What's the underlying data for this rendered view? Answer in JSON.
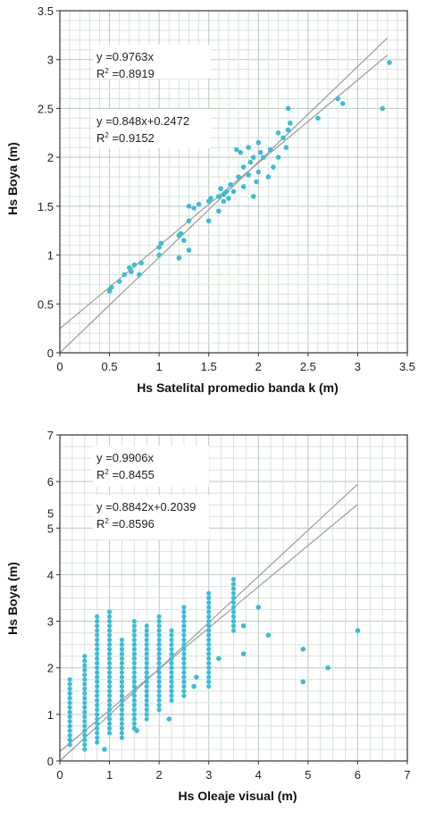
{
  "chart_data": [
    {
      "type": "scatter",
      "xlabel": "Hs Satelital promedio banda k (m)",
      "ylabel": "Hs Boya (m)",
      "xlim": [
        0,
        3.5
      ],
      "ylim": [
        0,
        3.5
      ],
      "x_ticks": [
        "0",
        "0.5",
        "1",
        "1.5",
        "2",
        "2.5",
        "3",
        "3.5"
      ],
      "y_ticks": [
        "0",
        "0.5",
        "1",
        "1.5",
        "2",
        "2.5",
        "3",
        "3.5"
      ],
      "grid": true,
      "point_color": "#3bbcd9",
      "annotations": [
        {
          "line1": "y =0.9763x",
          "line2_base": "R",
          "line2_sup": "2",
          "line2_rest": " =0.8919"
        },
        {
          "line1": "y =0.848x+0.2472",
          "line2_base": "R",
          "line2_sup": "2",
          "line2_rest": " =0.9152"
        }
      ],
      "lines": [
        {
          "slope": 0.9763,
          "intercept": 0,
          "x_end": 3.3
        },
        {
          "slope": 0.848,
          "intercept": 0.2472,
          "x_end": 3.3
        }
      ],
      "points": [
        [
          0.5,
          0.63
        ],
        [
          0.52,
          0.67
        ],
        [
          0.6,
          0.73
        ],
        [
          0.65,
          0.8
        ],
        [
          0.7,
          0.87
        ],
        [
          0.72,
          0.83
        ],
        [
          0.75,
          0.9
        ],
        [
          0.8,
          0.8
        ],
        [
          0.82,
          0.92
        ],
        [
          1.0,
          1.0
        ],
        [
          1.0,
          1.08
        ],
        [
          1.02,
          1.12
        ],
        [
          1.2,
          0.97
        ],
        [
          1.2,
          1.2
        ],
        [
          1.22,
          1.22
        ],
        [
          1.25,
          1.15
        ],
        [
          1.3,
          1.05
        ],
        [
          1.3,
          1.35
        ],
        [
          1.3,
          1.5
        ],
        [
          1.35,
          1.48
        ],
        [
          1.4,
          1.52
        ],
        [
          1.5,
          1.35
        ],
        [
          1.5,
          1.55
        ],
        [
          1.52,
          1.58
        ],
        [
          1.6,
          1.45
        ],
        [
          1.6,
          1.6
        ],
        [
          1.62,
          1.68
        ],
        [
          1.65,
          1.55
        ],
        [
          1.65,
          1.62
        ],
        [
          1.68,
          1.65
        ],
        [
          1.7,
          1.58
        ],
        [
          1.72,
          1.72
        ],
        [
          1.75,
          1.65
        ],
        [
          1.78,
          2.08
        ],
        [
          1.8,
          1.8
        ],
        [
          1.82,
          2.05
        ],
        [
          1.85,
          1.7
        ],
        [
          1.85,
          1.9
        ],
        [
          1.9,
          1.82
        ],
        [
          1.9,
          2.1
        ],
        [
          1.92,
          1.95
        ],
        [
          1.95,
          2.0
        ],
        [
          1.95,
          1.6
        ],
        [
          1.98,
          1.75
        ],
        [
          2.0,
          2.15
        ],
        [
          2.0,
          1.85
        ],
        [
          2.02,
          2.05
        ],
        [
          2.05,
          2.0
        ],
        [
          2.1,
          1.8
        ],
        [
          2.12,
          2.08
        ],
        [
          2.15,
          1.9
        ],
        [
          2.2,
          2.0
        ],
        [
          2.2,
          2.25
        ],
        [
          2.25,
          2.2
        ],
        [
          2.28,
          2.1
        ],
        [
          2.3,
          2.28
        ],
        [
          2.3,
          2.5
        ],
        [
          2.32,
          2.35
        ],
        [
          2.6,
          2.4
        ],
        [
          2.8,
          2.6
        ],
        [
          2.85,
          2.55
        ],
        [
          3.25,
          2.5
        ],
        [
          3.32,
          2.97
        ]
      ]
    },
    {
      "type": "scatter",
      "xlabel": "Hs Oleaje visual (m)",
      "ylabel": "Hs Boya (m)",
      "xlim": [
        0,
        7
      ],
      "ylim": [
        0,
        7
      ],
      "x_ticks": [
        "0",
        "1",
        "2",
        "3",
        "4",
        "5",
        "6",
        "7"
      ],
      "y_ticks": [
        "0",
        "1",
        "2",
        "3",
        "4",
        "5",
        "6",
        "7"
      ],
      "grid": true,
      "point_color": "#3bbcd9",
      "stray_mark": "5",
      "annotations": [
        {
          "line1": "y =0.9906x",
          "line2_base": "R",
          "line2_sup": "2",
          "line2_rest": " =0.8455"
        },
        {
          "line1": "y =0.8842x+0.2039",
          "line2_base": "R",
          "line2_sup": "2",
          "line2_rest": " =0.8596"
        }
      ],
      "lines": [
        {
          "slope": 0.9906,
          "intercept": 0,
          "x_end": 6
        },
        {
          "slope": 0.8842,
          "intercept": 0.2039,
          "x_end": 6
        }
      ],
      "columns": [
        {
          "x": 0.2,
          "y_min": 0.35,
          "y_max": 1.8
        },
        {
          "x": 0.5,
          "y_min": 0.25,
          "y_max": 2.3
        },
        {
          "x": 0.75,
          "y_min": 0.4,
          "y_max": 3.1
        },
        {
          "x": 1.0,
          "y_min": 0.6,
          "y_max": 3.2
        },
        {
          "x": 1.25,
          "y_min": 0.5,
          "y_max": 2.6
        },
        {
          "x": 1.5,
          "y_min": 0.7,
          "y_max": 3.0
        },
        {
          "x": 1.75,
          "y_min": 0.9,
          "y_max": 2.9
        },
        {
          "x": 2.0,
          "y_min": 1.1,
          "y_max": 3.1
        },
        {
          "x": 2.25,
          "y_min": 1.3,
          "y_max": 2.8
        },
        {
          "x": 2.5,
          "y_min": 1.4,
          "y_max": 3.3
        },
        {
          "x": 3.0,
          "y_min": 1.6,
          "y_max": 3.6
        },
        {
          "x": 3.5,
          "y_min": 2.8,
          "y_max": 3.9
        }
      ],
      "points": [
        [
          0.9,
          0.25
        ],
        [
          1.55,
          0.65
        ],
        [
          2.2,
          0.9
        ],
        [
          2.7,
          1.6
        ],
        [
          2.75,
          1.8
        ],
        [
          3.2,
          2.2
        ],
        [
          3.7,
          2.3
        ],
        [
          3.7,
          2.9
        ],
        [
          4.0,
          3.3
        ],
        [
          4.2,
          2.7
        ],
        [
          4.9,
          2.4
        ],
        [
          4.9,
          1.7
        ],
        [
          5.4,
          2.0
        ],
        [
          6.0,
          2.8
        ]
      ]
    }
  ]
}
